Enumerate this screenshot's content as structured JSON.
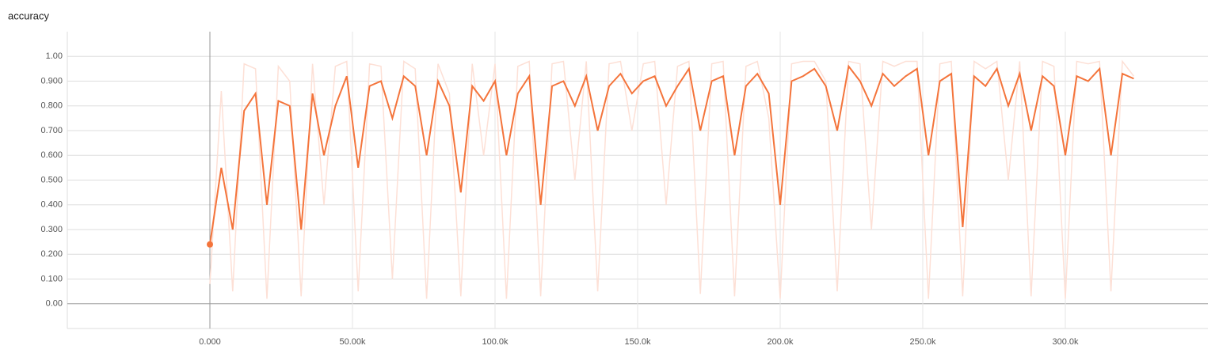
{
  "chart_data": {
    "type": "line",
    "title": "accuracy",
    "x": [
      0,
      4000,
      8000,
      12000,
      16000,
      20000,
      24000,
      28000,
      32000,
      36000,
      40000,
      44000,
      48000,
      52000,
      56000,
      60000,
      64000,
      68000,
      72000,
      76000,
      80000,
      84000,
      88000,
      92000,
      96000,
      100000,
      104000,
      108000,
      112000,
      116000,
      120000,
      124000,
      128000,
      132000,
      136000,
      140000,
      144000,
      148000,
      152000,
      156000,
      160000,
      164000,
      168000,
      172000,
      176000,
      180000,
      184000,
      188000,
      192000,
      196000,
      200000,
      204000,
      208000,
      212000,
      216000,
      220000,
      224000,
      228000,
      232000,
      236000,
      240000,
      244000,
      248000,
      252000,
      256000,
      260000,
      264000,
      268000,
      272000,
      276000,
      280000,
      284000,
      288000,
      292000,
      296000,
      300000,
      304000,
      308000,
      312000,
      316000,
      320000,
      324000
    ],
    "series": [
      {
        "color": "#fde0d6",
        "values": [
          0.08,
          0.86,
          0.05,
          0.97,
          0.95,
          0.02,
          0.96,
          0.9,
          0.03,
          0.97,
          0.4,
          0.96,
          0.98,
          0.05,
          0.97,
          0.96,
          0.1,
          0.98,
          0.95,
          0.02,
          0.97,
          0.85,
          0.03,
          0.97,
          0.6,
          0.97,
          0.02,
          0.96,
          0.98,
          0.03,
          0.97,
          0.98,
          0.5,
          0.98,
          0.05,
          0.97,
          0.98,
          0.7,
          0.97,
          0.98,
          0.4,
          0.96,
          0.98,
          0.04,
          0.97,
          0.98,
          0.03,
          0.96,
          0.98,
          0.75,
          0.02,
          0.97,
          0.98,
          0.98,
          0.9,
          0.05,
          0.98,
          0.97,
          0.3,
          0.98,
          0.96,
          0.98,
          0.98,
          0.02,
          0.97,
          0.98,
          0.03,
          0.98,
          0.95,
          0.98,
          0.5,
          0.98,
          0.03,
          0.98,
          0.96,
          0.02,
          0.98,
          0.97,
          0.98,
          0.05,
          0.98,
          0.92
        ]
      },
      {
        "color": "#f4743b",
        "values": [
          0.24,
          0.55,
          0.3,
          0.78,
          0.85,
          0.4,
          0.82,
          0.8,
          0.3,
          0.85,
          0.6,
          0.8,
          0.92,
          0.55,
          0.88,
          0.9,
          0.75,
          0.92,
          0.88,
          0.6,
          0.9,
          0.8,
          0.45,
          0.88,
          0.82,
          0.9,
          0.6,
          0.85,
          0.92,
          0.4,
          0.88,
          0.9,
          0.8,
          0.92,
          0.7,
          0.88,
          0.93,
          0.85,
          0.9,
          0.92,
          0.8,
          0.88,
          0.95,
          0.7,
          0.9,
          0.92,
          0.6,
          0.88,
          0.93,
          0.85,
          0.4,
          0.9,
          0.92,
          0.95,
          0.88,
          0.7,
          0.96,
          0.9,
          0.8,
          0.93,
          0.88,
          0.92,
          0.95,
          0.6,
          0.9,
          0.93,
          0.31,
          0.92,
          0.88,
          0.95,
          0.8,
          0.93,
          0.7,
          0.92,
          0.88,
          0.6,
          0.92,
          0.9,
          0.95,
          0.6,
          0.93,
          0.91
        ]
      }
    ],
    "xlim": [
      -50000,
      350000
    ],
    "xticks": [
      {
        "value": 0,
        "label": "0.000"
      },
      {
        "value": 50000,
        "label": "50.00k"
      },
      {
        "value": 100000,
        "label": "100.0k"
      },
      {
        "value": 150000,
        "label": "150.0k"
      },
      {
        "value": 200000,
        "label": "200.0k"
      },
      {
        "value": 250000,
        "label": "250.0k"
      },
      {
        "value": 300000,
        "label": "300.0k"
      }
    ],
    "ylim": [
      -0.1,
      1.1
    ],
    "yticks": [
      {
        "value": 0,
        "label": "0.00"
      },
      {
        "value": 0.1,
        "label": "0.100"
      },
      {
        "value": 0.2,
        "label": "0.200"
      },
      {
        "value": 0.3,
        "label": "0.300"
      },
      {
        "value": 0.4,
        "label": "0.400"
      },
      {
        "value": 0.5,
        "label": "0.500"
      },
      {
        "value": 0.6,
        "label": "0.600"
      },
      {
        "value": 0.7,
        "label": "0.700"
      },
      {
        "value": 0.8,
        "label": "0.800"
      },
      {
        "value": 0.9,
        "label": "0.900"
      },
      {
        "value": 1,
        "label": "1.00"
      }
    ],
    "grid": true
  }
}
